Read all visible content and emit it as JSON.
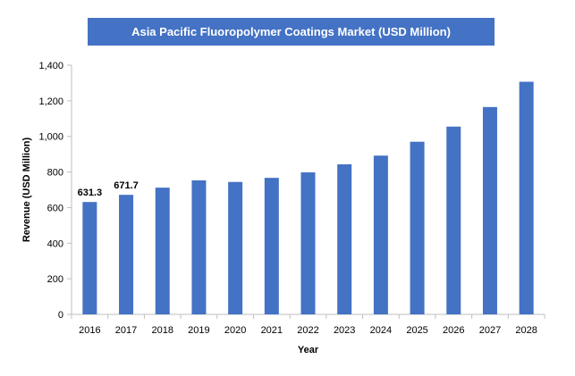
{
  "chart_data": {
    "type": "bar",
    "title": "Asia Pacific Fluoropolymer Coatings Market (USD Million)",
    "xlabel": "Year",
    "ylabel": "Revenue (USD Million)",
    "categories": [
      "2016",
      "2017",
      "2018",
      "2019",
      "2020",
      "2021",
      "2022",
      "2023",
      "2024",
      "2025",
      "2026",
      "2027",
      "2028"
    ],
    "series": [
      {
        "values": [
          631.3,
          671.7,
          712,
          753,
          744,
          767,
          798,
          843,
          892,
          970,
          1055,
          1165,
          1307
        ]
      }
    ],
    "data_labels": [
      "631.3",
      "671.7",
      "",
      "",
      "",
      "",
      "",
      "",
      "",
      "",
      "",
      "",
      ""
    ],
    "yticks": [
      0,
      200,
      400,
      600,
      800,
      1000,
      1200,
      1400
    ],
    "ytick_labels": [
      "0",
      "200",
      "400",
      "600",
      "800",
      "1,000",
      "1,200",
      "1,400"
    ],
    "ylim": [
      0,
      1400
    ],
    "grid": false,
    "legend": "none",
    "bar_color": "#4472c4",
    "axis_color": "#bfbfbf",
    "text_color": "#000000"
  }
}
